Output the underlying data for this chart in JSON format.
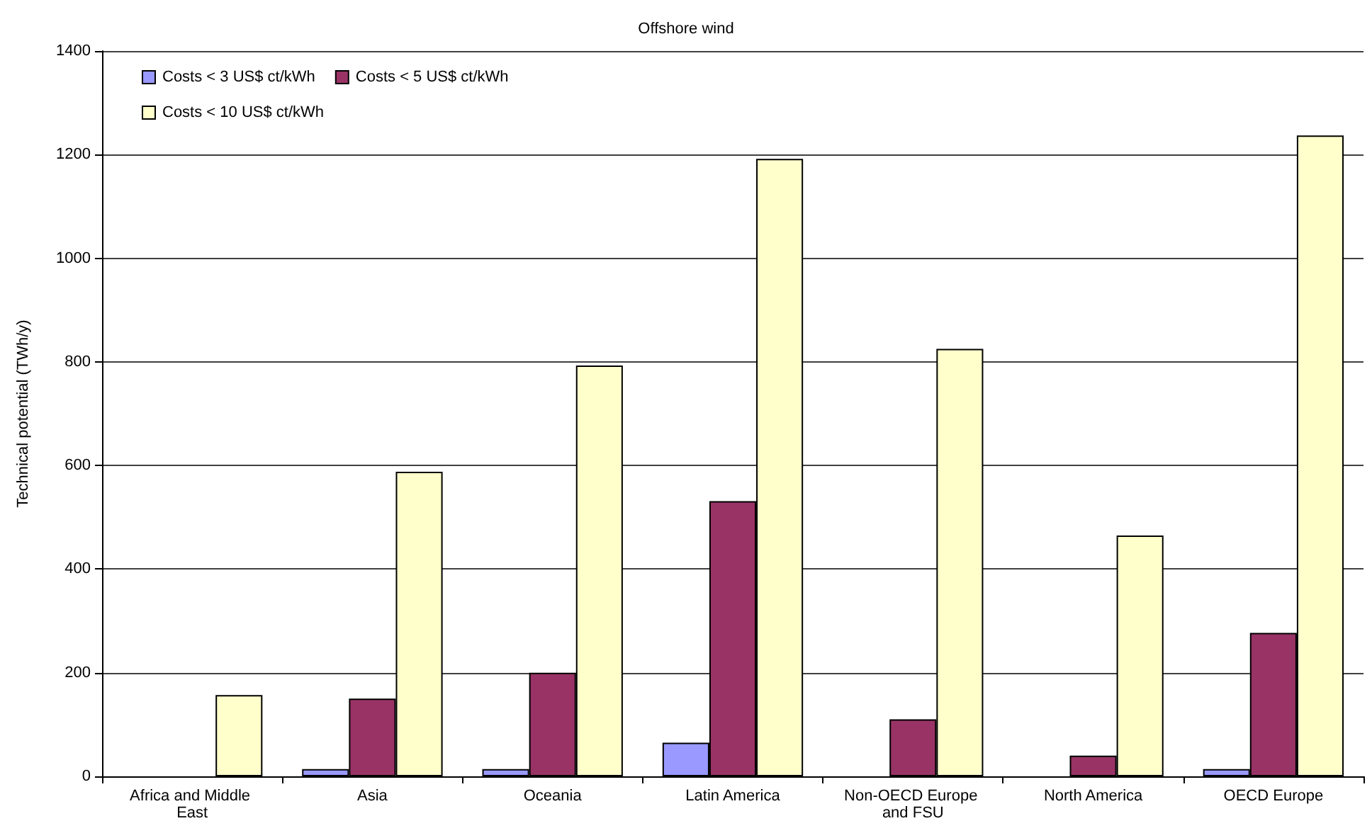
{
  "chart_data": {
    "type": "bar",
    "title": "Offshore wind",
    "ylabel": "Technical potential (TWh/y)",
    "categories": [
      "Africa and Middle East",
      "Asia",
      "Oceania",
      "Latin America",
      "Non-OECD Europe and FSU",
      "North America",
      "OECD Europe"
    ],
    "series": [
      {
        "name": "Costs < 3 US$ ct/kWh",
        "color": "#9999ff",
        "values": [
          0,
          14,
          14,
          65,
          0,
          0,
          14
        ]
      },
      {
        "name": "Costs < 5 US$ ct/kWh",
        "color": "#993366",
        "values": [
          0,
          150,
          200,
          531,
          110,
          40,
          277
        ]
      },
      {
        "name": "Costs < 10 US$ ct/kWh",
        "color": "#ffffcc",
        "values": [
          157,
          588,
          793,
          1192,
          825,
          465,
          1237
        ]
      }
    ],
    "ylim": [
      0,
      1400
    ],
    "yticks": [
      0,
      200,
      400,
      600,
      800,
      1000,
      1200,
      1400
    ],
    "grid": "y",
    "legend": "top left"
  }
}
